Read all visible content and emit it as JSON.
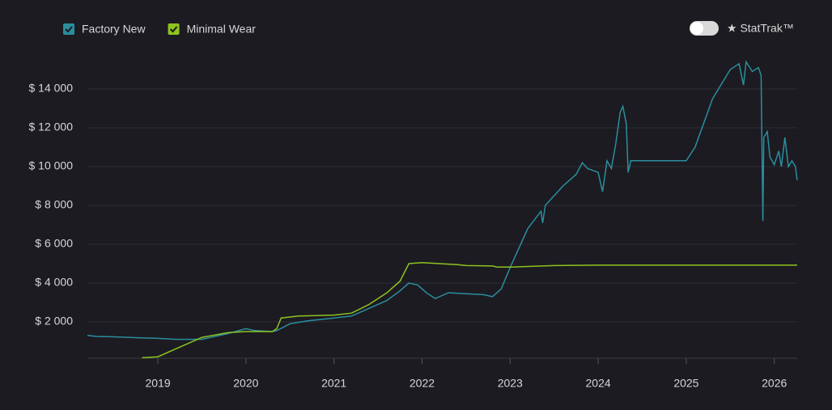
{
  "chart_data": {
    "type": "line",
    "toggle_label": "★ StatTrak™",
    "xlim": [
      2018.2,
      2026.26
    ],
    "xticks": [
      2019,
      2020,
      2021,
      2022,
      2023,
      2024,
      2025,
      2026
    ],
    "ylim": [
      0,
      16000
    ],
    "yticks": [
      {
        "value": 2000,
        "label": "$ 2 000"
      },
      {
        "value": 4000,
        "label": "$ 4 000"
      },
      {
        "value": 6000,
        "label": "$ 6 000"
      },
      {
        "value": 8000,
        "label": "$ 8 000"
      },
      {
        "value": 10000,
        "label": "$ 10 000"
      },
      {
        "value": 12000,
        "label": "$ 12 000"
      },
      {
        "value": 14000,
        "label": "$ 14 000"
      }
    ],
    "grid": true,
    "series": [
      {
        "name": "Factory New",
        "color": "#2a8e9e",
        "x": [
          2018.2,
          2018.3,
          2018.5,
          2018.8,
          2019.0,
          2019.2,
          2019.5,
          2019.8,
          2020.0,
          2020.1,
          2020.3,
          2020.35,
          2020.5,
          2020.7,
          2021.0,
          2021.2,
          2021.4,
          2021.6,
          2021.75,
          2021.85,
          2021.95,
          2022.05,
          2022.15,
          2022.3,
          2022.5,
          2022.7,
          2022.8,
          2022.9,
          2023.0,
          2023.2,
          2023.35,
          2023.37,
          2023.4,
          2023.6,
          2023.75,
          2023.82,
          2023.88,
          2024.0,
          2024.05,
          2024.1,
          2024.15,
          2024.2,
          2024.25,
          2024.28,
          2024.32,
          2024.34,
          2024.37,
          2024.7,
          2025.0,
          2025.1,
          2025.3,
          2025.5,
          2025.6,
          2025.65,
          2025.68,
          2025.75,
          2025.82,
          2025.85,
          2025.87,
          2025.88,
          2025.92,
          2025.95,
          2026.0,
          2026.05,
          2026.08,
          2026.12,
          2026.16,
          2026.2,
          2026.24,
          2026.26
        ],
        "values": [
          1300,
          1250,
          1230,
          1180,
          1150,
          1100,
          1100,
          1400,
          1650,
          1550,
          1500,
          1550,
          1900,
          2050,
          2200,
          2300,
          2700,
          3100,
          3600,
          4000,
          3900,
          3500,
          3200,
          3500,
          3450,
          3400,
          3300,
          3700,
          4800,
          6800,
          7700,
          7100,
          8000,
          9000,
          9600,
          10200,
          9900,
          9700,
          8700,
          10300,
          9900,
          11200,
          12800,
          13100,
          12200,
          9700,
          10300,
          10300,
          10300,
          11000,
          13500,
          15000,
          15300,
          14200,
          15400,
          14900,
          15100,
          14700,
          7200,
          11500,
          11800,
          10500,
          10100,
          10800,
          10000,
          11500,
          10000,
          10300,
          10000,
          9300
        ]
      },
      {
        "name": "Minimal Wear",
        "color": "#8fc31f",
        "x": [
          2018.82,
          2019.0,
          2019.2,
          2019.5,
          2019.8,
          2020.0,
          2020.3,
          2020.35,
          2020.4,
          2020.6,
          2021.0,
          2021.2,
          2021.4,
          2021.6,
          2021.75,
          2021.85,
          2022.0,
          2022.4,
          2022.5,
          2022.8,
          2022.85,
          2023.0,
          2023.5,
          2024.0,
          2026.26
        ],
        "values": [
          150,
          200,
          600,
          1200,
          1450,
          1500,
          1500,
          1650,
          2200,
          2300,
          2350,
          2450,
          2900,
          3500,
          4100,
          5000,
          5050,
          4950,
          4900,
          4880,
          4820,
          4820,
          4900,
          4920,
          4920
        ]
      }
    ]
  }
}
